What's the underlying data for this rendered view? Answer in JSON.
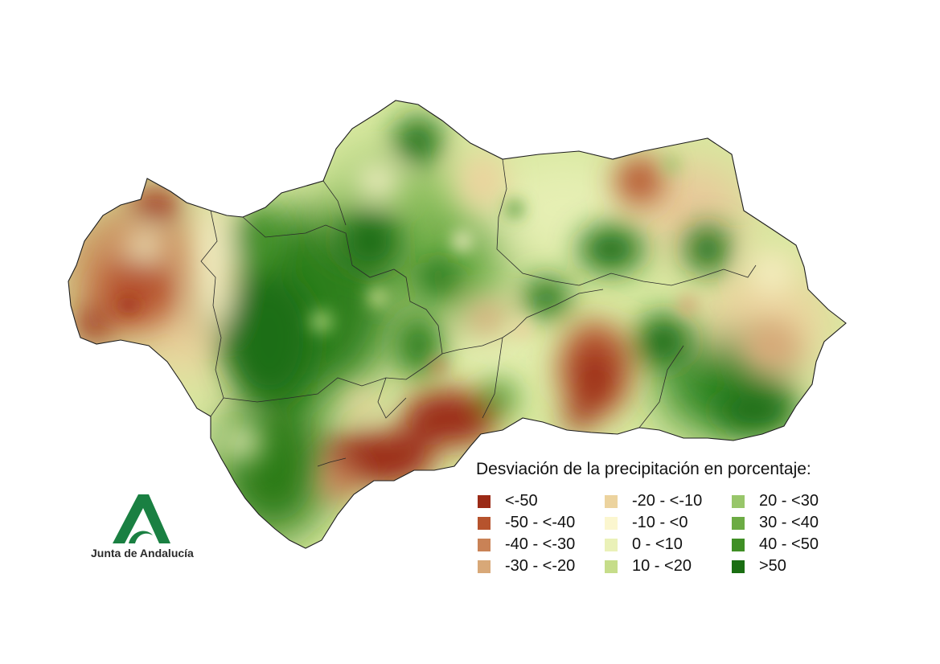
{
  "legend": {
    "title": "Desviación de la precipitación en porcentaje:",
    "items": [
      {
        "label": "<-50",
        "color": "#9b2a16"
      },
      {
        "label": "-50 - <-40",
        "color": "#b6532d"
      },
      {
        "label": "-40 - <-30",
        "color": "#c98256"
      },
      {
        "label": "-30 - <-20",
        "color": "#d8a878"
      },
      {
        "label": "-20 - <-10",
        "color": "#ecd39e"
      },
      {
        "label": "-10 - <0",
        "color": "#fbf6cf"
      },
      {
        "label": "0 - <10",
        "color": "#eaf1b8"
      },
      {
        "label": "10 - <20",
        "color": "#c6dd8a"
      },
      {
        "label": "20 - <30",
        "color": "#98c66a"
      },
      {
        "label": "30 - <40",
        "color": "#6cab44"
      },
      {
        "label": "40 - <50",
        "color": "#3f8f25"
      },
      {
        "label": ">50",
        "color": "#1a6e12"
      }
    ]
  },
  "logo": {
    "text": "Junta de Andalucía",
    "icon": "andalucia-a-logo-icon",
    "color": "#1a8042"
  }
}
